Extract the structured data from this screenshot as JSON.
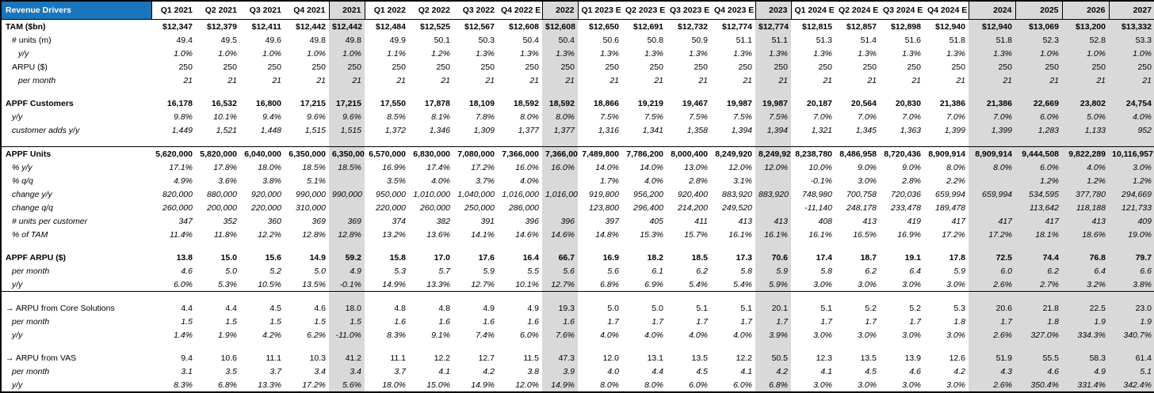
{
  "colors": {
    "title_bg": "#1B75BC",
    "title_text": "#FFFFFF",
    "year_col_bg": "#D9D9D9",
    "border": "#000000"
  },
  "table": {
    "title": "Revenue Drivers",
    "columns": [
      {
        "label": "Q1 2021",
        "type": "q"
      },
      {
        "label": "Q2 2021",
        "type": "q"
      },
      {
        "label": "Q3 2021",
        "type": "q"
      },
      {
        "label": "Q4 2021",
        "type": "q"
      },
      {
        "label": "2021",
        "type": "y"
      },
      {
        "label": "Q1 2022",
        "type": "q"
      },
      {
        "label": "Q2 2022",
        "type": "q"
      },
      {
        "label": "Q3 2022",
        "type": "q"
      },
      {
        "label": "Q4 2022 E",
        "type": "q"
      },
      {
        "label": "2022",
        "type": "y"
      },
      {
        "label": "Q1 2023 E",
        "type": "q"
      },
      {
        "label": "Q2 2023 E",
        "type": "q"
      },
      {
        "label": "Q3 2023 E",
        "type": "q"
      },
      {
        "label": "Q4 2023 E",
        "type": "q"
      },
      {
        "label": "2023",
        "type": "y"
      },
      {
        "label": "Q1 2024 E",
        "type": "q"
      },
      {
        "label": "Q2 2024 E",
        "type": "q"
      },
      {
        "label": "Q3 2024 E",
        "type": "q"
      },
      {
        "label": "Q4 2024 E",
        "type": "q"
      },
      {
        "label": "2024",
        "type": "yb"
      },
      {
        "label": "2025",
        "type": "yb"
      },
      {
        "label": "2026",
        "type": "yb"
      },
      {
        "label": "2027",
        "type": "yb"
      }
    ],
    "rows": [
      {
        "label": "TAM ($bn)",
        "bold": true,
        "indent": 0,
        "values": [
          "$12,347",
          "$12,379",
          "$12,411",
          "$12,442",
          "$12,442",
          "$12,484",
          "$12,525",
          "$12,567",
          "$12,608",
          "$12,608",
          "$12,650",
          "$12,691",
          "$12,732",
          "$12,774",
          "$12,774",
          "$12,815",
          "$12,857",
          "$12,898",
          "$12,940",
          "$12,940",
          "$13,069",
          "$13,200",
          "$13,332"
        ]
      },
      {
        "label": "# units (m)",
        "indent": 1,
        "values": [
          "49.4",
          "49.5",
          "49.6",
          "49.8",
          "49.8",
          "49.9",
          "50.1",
          "50.3",
          "50.4",
          "50.4",
          "50.6",
          "50.8",
          "50.9",
          "51.1",
          "51.1",
          "51.3",
          "51.4",
          "51.6",
          "51.8",
          "51.8",
          "52.3",
          "52.8",
          "53.3"
        ]
      },
      {
        "label": "y/y",
        "italic": true,
        "indent": 2,
        "values": [
          "1.0%",
          "1.0%",
          "1.0%",
          "1.0%",
          "1.0%",
          "1.1%",
          "1.2%",
          "1.3%",
          "1.3%",
          "1.3%",
          "1.3%",
          "1.3%",
          "1.3%",
          "1.3%",
          "1.3%",
          "1.3%",
          "1.3%",
          "1.3%",
          "1.3%",
          "1.3%",
          "1.0%",
          "1.0%",
          "1.0%"
        ]
      },
      {
        "label": "ARPU ($)",
        "indent": 1,
        "values": [
          "250",
          "250",
          "250",
          "250",
          "250",
          "250",
          "250",
          "250",
          "250",
          "250",
          "250",
          "250",
          "250",
          "250",
          "250",
          "250",
          "250",
          "250",
          "250",
          "250",
          "250",
          "250",
          "250"
        ]
      },
      {
        "label": "per month",
        "italic": true,
        "indent": 2,
        "values": [
          "21",
          "21",
          "21",
          "21",
          "21",
          "21",
          "21",
          "21",
          "21",
          "21",
          "21",
          "21",
          "21",
          "21",
          "21",
          "21",
          "21",
          "21",
          "21",
          "21",
          "21",
          "21",
          "21"
        ]
      },
      {
        "blank": true
      },
      {
        "label": "APPF Customers",
        "bold": true,
        "indent": 0,
        "values": [
          "16,178",
          "16,532",
          "16,800",
          "17,215",
          "17,215",
          "17,550",
          "17,878",
          "18,109",
          "18,592",
          "18,592",
          "18,866",
          "19,219",
          "19,467",
          "19,987",
          "19,987",
          "20,187",
          "20,564",
          "20,830",
          "21,386",
          "21,386",
          "22,669",
          "23,802",
          "24,754"
        ]
      },
      {
        "label": "y/y",
        "italic": true,
        "indent": 1,
        "values": [
          "9.8%",
          "10.1%",
          "9.4%",
          "9.6%",
          "9.6%",
          "8.5%",
          "8.1%",
          "7.8%",
          "8.0%",
          "8.0%",
          "7.5%",
          "7.5%",
          "7.5%",
          "7.5%",
          "7.5%",
          "7.0%",
          "7.0%",
          "7.0%",
          "7.0%",
          "7.0%",
          "6.0%",
          "5.0%",
          "4.0%"
        ]
      },
      {
        "label": "customer adds y/y",
        "italic": true,
        "indent": 1,
        "values": [
          "1,449",
          "1,521",
          "1,448",
          "1,515",
          "1,515",
          "1,372",
          "1,346",
          "1,309",
          "1,377",
          "1,377",
          "1,316",
          "1,341",
          "1,358",
          "1,394",
          "1,394",
          "1,321",
          "1,345",
          "1,363",
          "1,399",
          "1,399",
          "1,283",
          "1,133",
          "952"
        ]
      },
      {
        "blank": true
      },
      {
        "label": "APPF Units",
        "bold": true,
        "indent": 0,
        "line_top": true,
        "values": [
          "5,620,000",
          "5,820,000",
          "6,040,000",
          "6,350,000",
          "6,350,000",
          "6,570,000",
          "6,830,000",
          "7,080,000",
          "7,366,000",
          "7,366,000",
          "7,489,800",
          "7,786,200",
          "8,000,400",
          "8,249,920",
          "8,249,920",
          "8,238,780",
          "8,486,958",
          "8,720,436",
          "8,909,914",
          "8,909,914",
          "9,444,508",
          "9,822,289",
          "10,116,957"
        ]
      },
      {
        "label": "% y/y",
        "italic": true,
        "indent": 1,
        "values": [
          "17.1%",
          "17.8%",
          "18.0%",
          "18.5%",
          "18.5%",
          "16.9%",
          "17.4%",
          "17.2%",
          "16.0%",
          "16.0%",
          "14.0%",
          "14.0%",
          "13.0%",
          "12.0%",
          "12.0%",
          "10.0%",
          "9.0%",
          "9.0%",
          "8.0%",
          "8.0%",
          "6.0%",
          "4.0%",
          "3.0%"
        ]
      },
      {
        "label": "% q/q",
        "italic": true,
        "indent": 1,
        "values": [
          "4.9%",
          "3.6%",
          "3.8%",
          "5.1%",
          "",
          "3.5%",
          "4.0%",
          "3.7%",
          "4.0%",
          "",
          "1.7%",
          "4.0%",
          "2.8%",
          "3.1%",
          "",
          "-0.1%",
          "3.0%",
          "2.8%",
          "2.2%",
          "",
          "1.2%",
          "1.2%",
          "1.2%"
        ]
      },
      {
        "label": "change y/y",
        "italic": true,
        "indent": 1,
        "values": [
          "820,000",
          "880,000",
          "920,000",
          "990,000",
          "990,000",
          "950,000",
          "1,010,000",
          "1,040,000",
          "1,016,000",
          "1,016,000",
          "919,800",
          "956,200",
          "920,400",
          "883,920",
          "883,920",
          "748,980",
          "700,758",
          "720,036",
          "659,994",
          "659,994",
          "534,595",
          "377,780",
          "294,669"
        ]
      },
      {
        "label": "change q/q",
        "italic": true,
        "indent": 1,
        "values": [
          "260,000",
          "200,000",
          "220,000",
          "310,000",
          "",
          "220,000",
          "260,000",
          "250,000",
          "286,000",
          "",
          "123,800",
          "296,400",
          "214,200",
          "249,520",
          "",
          "-11,140",
          "248,178",
          "233,478",
          "189,478",
          "",
          "113,642",
          "118,188",
          "121,733"
        ]
      },
      {
        "label": "# units per customer",
        "italic": true,
        "indent": 1,
        "values": [
          "347",
          "352",
          "360",
          "369",
          "369",
          "374",
          "382",
          "391",
          "396",
          "396",
          "397",
          "405",
          "411",
          "413",
          "413",
          "408",
          "413",
          "419",
          "417",
          "417",
          "417",
          "413",
          "409"
        ]
      },
      {
        "label": "% of TAM",
        "italic": true,
        "indent": 1,
        "values": [
          "11.4%",
          "11.8%",
          "12.2%",
          "12.8%",
          "12.8%",
          "13.2%",
          "13.6%",
          "14.1%",
          "14.6%",
          "14.6%",
          "14.8%",
          "15.3%",
          "15.7%",
          "16.1%",
          "16.1%",
          "16.1%",
          "16.5%",
          "16.9%",
          "17.2%",
          "17.2%",
          "18.1%",
          "18.6%",
          "19.0%"
        ]
      },
      {
        "blank": true
      },
      {
        "label": "APPF ARPU ($)",
        "bold": true,
        "indent": 0,
        "values": [
          "13.8",
          "15.0",
          "15.6",
          "14.9",
          "59.2",
          "15.8",
          "17.0",
          "17.6",
          "16.4",
          "66.7",
          "16.9",
          "18.2",
          "18.5",
          "17.3",
          "70.6",
          "17.4",
          "18.7",
          "19.1",
          "17.8",
          "72.5",
          "74.4",
          "76.8",
          "79.7"
        ]
      },
      {
        "label": "per month",
        "italic": true,
        "indent": 1,
        "values": [
          "4.6",
          "5.0",
          "5.2",
          "5.0",
          "4.9",
          "5.3",
          "5.7",
          "5.9",
          "5.5",
          "5.6",
          "5.6",
          "6.1",
          "6.2",
          "5.8",
          "5.9",
          "5.8",
          "6.2",
          "6.4",
          "5.9",
          "6.0",
          "6.2",
          "6.4",
          "6.6"
        ]
      },
      {
        "label": "y/y",
        "italic": true,
        "indent": 1,
        "line_bottom": true,
        "values": [
          "6.0%",
          "5.3%",
          "10.5%",
          "13.5%",
          "-0.1%",
          "14.9%",
          "13.3%",
          "12.7%",
          "10.1%",
          "12.7%",
          "6.8%",
          "6.9%",
          "5.4%",
          "5.4%",
          "5.9%",
          "3.0%",
          "3.0%",
          "3.0%",
          "3.0%",
          "2.6%",
          "2.7%",
          "3.2%",
          "3.8%"
        ]
      },
      {
        "blank": true
      },
      {
        "label": "→ ARPU from Core Solutions",
        "indent": 0,
        "values": [
          "4.4",
          "4.4",
          "4.5",
          "4.6",
          "18.0",
          "4.8",
          "4.8",
          "4.9",
          "4.9",
          "19.3",
          "5.0",
          "5.0",
          "5.1",
          "5.1",
          "20.1",
          "5.1",
          "5.2",
          "5.2",
          "5.3",
          "20.6",
          "21.8",
          "22.5",
          "23.0"
        ]
      },
      {
        "label": "per month",
        "italic": true,
        "indent": 1,
        "values": [
          "1.5",
          "1.5",
          "1.5",
          "1.5",
          "1.5",
          "1.6",
          "1.6",
          "1.6",
          "1.6",
          "1.6",
          "1.7",
          "1.7",
          "1.7",
          "1.7",
          "1.7",
          "1.7",
          "1.7",
          "1.7",
          "1.8",
          "1.7",
          "1.8",
          "1.9",
          "1.9"
        ]
      },
      {
        "label": "y/y",
        "italic": true,
        "indent": 1,
        "values": [
          "1.4%",
          "1.9%",
          "4.2%",
          "6.2%",
          "-11.0%",
          "8.3%",
          "9.1%",
          "7.4%",
          "6.0%",
          "7.6%",
          "4.0%",
          "4.0%",
          "4.0%",
          "4.0%",
          "3.9%",
          "3.0%",
          "3.0%",
          "3.0%",
          "3.0%",
          "2.6%",
          "327.0%",
          "334.3%",
          "340.7%"
        ]
      },
      {
        "blank": true
      },
      {
        "label": "→ ARPU from VAS",
        "indent": 0,
        "values": [
          "9.4",
          "10.6",
          "11.1",
          "10.3",
          "41.2",
          "11.1",
          "12.2",
          "12.7",
          "11.5",
          "47.3",
          "12.0",
          "13.1",
          "13.5",
          "12.2",
          "50.5",
          "12.3",
          "13.5",
          "13.9",
          "12.6",
          "51.9",
          "55.5",
          "58.3",
          "61.4"
        ]
      },
      {
        "label": "per month",
        "italic": true,
        "indent": 1,
        "values": [
          "3.1",
          "3.5",
          "3.7",
          "3.4",
          "3.4",
          "3.7",
          "4.1",
          "4.2",
          "3.8",
          "3.9",
          "4.0",
          "4.4",
          "4.5",
          "4.1",
          "4.2",
          "4.1",
          "4.5",
          "4.6",
          "4.2",
          "4.3",
          "4.6",
          "4.9",
          "5.1"
        ]
      },
      {
        "label": "y/y",
        "italic": true,
        "indent": 1,
        "values": [
          "8.3%",
          "6.8%",
          "13.3%",
          "17.2%",
          "5.6%",
          "18.0%",
          "15.0%",
          "14.9%",
          "12.0%",
          "14.9%",
          "8.0%",
          "8.0%",
          "6.0%",
          "6.0%",
          "6.8%",
          "3.0%",
          "3.0%",
          "3.0%",
          "3.0%",
          "2.6%",
          "350.4%",
          "331.4%",
          "342.4%"
        ]
      }
    ]
  }
}
